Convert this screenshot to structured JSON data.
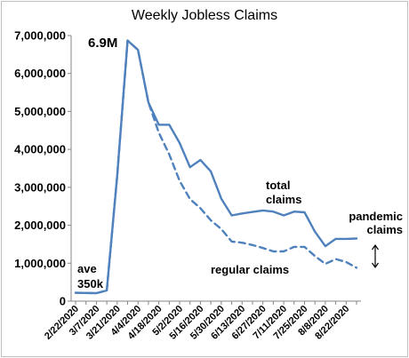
{
  "chart_data": {
    "type": "line",
    "title": "Weekly Jobless Claims",
    "xlabel": "",
    "ylabel": "",
    "ylim": [
      0,
      7000000
    ],
    "y_ticks": [
      0,
      1000000,
      2000000,
      3000000,
      4000000,
      5000000,
      6000000,
      7000000
    ],
    "y_tick_labels": [
      "0",
      "1,000,000",
      "2,000,000",
      "3,000,000",
      "4,000,000",
      "5,000,000",
      "6,000,000",
      "7,000,000"
    ],
    "x_tick_labels": [
      "2/22/2020",
      "3/7/2020",
      "3/21/2020",
      "4/4/2020",
      "4/18/2020",
      "5/2/2020",
      "5/16/2020",
      "5/30/2020",
      "6/13/2020",
      "6/27/2020",
      "7/11/2020",
      "7/25/2020",
      "8/8/2020",
      "8/22/2020"
    ],
    "x": [
      "2/22/2020",
      "2/29/2020",
      "3/7/2020",
      "3/14/2020",
      "3/21/2020",
      "3/28/2020",
      "4/4/2020",
      "4/11/2020",
      "4/18/2020",
      "4/25/2020",
      "5/2/2020",
      "5/9/2020",
      "5/16/2020",
      "5/23/2020",
      "5/30/2020",
      "6/6/2020",
      "6/13/2020",
      "6/20/2020",
      "6/27/2020",
      "7/4/2020",
      "7/11/2020",
      "7/18/2020",
      "7/25/2020",
      "8/1/2020",
      "8/8/2020",
      "8/15/2020",
      "8/22/2020",
      "8/29/2020"
    ],
    "grid": false,
    "legend": "none",
    "series": [
      {
        "name": "total claims",
        "style": "solid",
        "color": "#4f81bd",
        "values": [
          220000,
          215000,
          210000,
          280000,
          3300000,
          6870000,
          6620000,
          5240000,
          4650000,
          4650000,
          4170000,
          3530000,
          3720000,
          3420000,
          2700000,
          2260000,
          2310000,
          2350000,
          2390000,
          2360000,
          2260000,
          2360000,
          2340000,
          1830000,
          1450000,
          1640000,
          1640000,
          1650000
        ]
      },
      {
        "name": "regular claims",
        "style": "dashed",
        "color": "#4f81bd",
        "values": [
          220000,
          215000,
          210000,
          280000,
          3300000,
          6870000,
          6620000,
          5240000,
          4440000,
          3870000,
          3170000,
          2690000,
          2450000,
          2130000,
          1900000,
          1570000,
          1540000,
          1480000,
          1400000,
          1310000,
          1310000,
          1430000,
          1430000,
          1190000,
          980000,
          1110000,
          1030000,
          880000
        ]
      }
    ],
    "annotations": {
      "peak": "6.9M",
      "ave_line1": "ave",
      "ave_line2": "350k",
      "total_line1": "total",
      "total_line2": "claims",
      "regular": "regular claims",
      "pandemic_line1": "pandemic",
      "pandemic_line2": "claims"
    }
  }
}
